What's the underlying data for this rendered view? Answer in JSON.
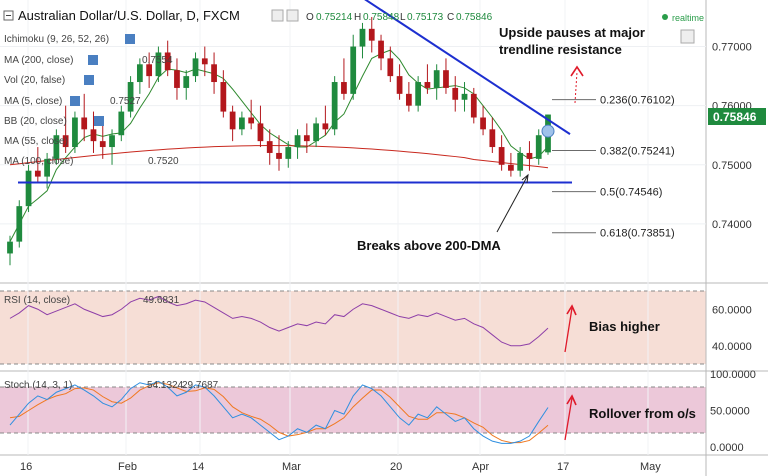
{
  "header": {
    "symbol": "Australian Dollar/U.S. Dollar, D, FXCM",
    "o_label": "O",
    "o": "0.75214",
    "h_label": "H",
    "h": "0.75848",
    "l_label": "L",
    "l": "0.75173",
    "c_label": "C",
    "c": "0.75846",
    "realtime_label": "realtime"
  },
  "indicators": {
    "ichimoku": "Ichimoku (9, 26, 52, 26)",
    "ma200": "MA (200, close)",
    "ma200_value": "0.7554",
    "vol": "Vol (20, false)",
    "ma5": "MA (5, close)",
    "ma5_value": "0.7527",
    "bb": "BB (20, close)",
    "ma55": "MA (55, close)",
    "ma100": "MA (100, close)",
    "ma100_value": "0.7520"
  },
  "annotations": {
    "resistance_1": "Upside pauses at major",
    "resistance_2": "trendline resistance",
    "breakout": "Breaks above 200-DMA",
    "bias": "Bias higher",
    "rollover": "Rollover from o/s"
  },
  "fib_levels": [
    {
      "label": "0.236(0.76102)",
      "value": 0.76102
    },
    {
      "label": "0.382(0.75241)",
      "value": 0.75241
    },
    {
      "label": "0.5(0.74546)",
      "value": 0.74546
    },
    {
      "label": "0.618(0.73851)",
      "value": 0.73851
    }
  ],
  "price_axis": {
    "ticks": [
      {
        "label": "0.77000",
        "value": 0.77
      },
      {
        "label": "0.76000",
        "value": 0.76
      },
      {
        "label": "0.75000",
        "value": 0.75
      },
      {
        "label": "0.74000",
        "value": 0.74
      }
    ],
    "last_price": "0.75846",
    "last_price_color": "#1f8a3e"
  },
  "rsi": {
    "label": "RSI (14, close)",
    "value": "49.6831",
    "ticks": [
      {
        "label": "60.0000",
        "value": 60
      },
      {
        "label": "40.0000",
        "value": 40
      }
    ],
    "color": "#8e3fa8"
  },
  "stoch": {
    "label": "Stoch (14, 3, 1)",
    "k_value": "54.1324",
    "d_value": "29.7687",
    "ticks": [
      {
        "label": "100.0000",
        "value": 100
      },
      {
        "label": "50.0000",
        "value": 50
      },
      {
        "label": "0.0000",
        "value": 0
      }
    ],
    "k_color": "#2f8fe0",
    "d_color": "#f07820"
  },
  "time_axis": [
    "16",
    "Feb",
    "14",
    "Mar",
    "20",
    "Apr",
    "17",
    "May"
  ],
  "colors": {
    "bull": "#1f8a3e",
    "bear": "#b3171c",
    "trendline": "#1d2fd0",
    "ma200": "#c8281e",
    "ma5": "#2f8a2f",
    "annotation_arrow": "#e01a2a",
    "bias_arrow": "#e01a2a"
  },
  "chart_data": {
    "type": "candlestick",
    "title": "Australian Dollar/U.S. Dollar, D, FXCM",
    "ylim": [
      0.7322,
      0.7772
    ],
    "candles": [
      {
        "o": 0.735,
        "h": 0.738,
        "l": 0.733,
        "c": 0.737
      },
      {
        "o": 0.737,
        "h": 0.744,
        "l": 0.736,
        "c": 0.743
      },
      {
        "o": 0.743,
        "h": 0.75,
        "l": 0.742,
        "c": 0.749
      },
      {
        "o": 0.749,
        "h": 0.753,
        "l": 0.747,
        "c": 0.748
      },
      {
        "o": 0.748,
        "h": 0.752,
        "l": 0.746,
        "c": 0.751
      },
      {
        "o": 0.751,
        "h": 0.756,
        "l": 0.75,
        "c": 0.755
      },
      {
        "o": 0.755,
        "h": 0.76,
        "l": 0.752,
        "c": 0.753
      },
      {
        "o": 0.753,
        "h": 0.759,
        "l": 0.752,
        "c": 0.758
      },
      {
        "o": 0.758,
        "h": 0.762,
        "l": 0.754,
        "c": 0.756
      },
      {
        "o": 0.756,
        "h": 0.759,
        "l": 0.752,
        "c": 0.754
      },
      {
        "o": 0.754,
        "h": 0.757,
        "l": 0.751,
        "c": 0.753
      },
      {
        "o": 0.753,
        "h": 0.756,
        "l": 0.75,
        "c": 0.755
      },
      {
        "o": 0.755,
        "h": 0.76,
        "l": 0.754,
        "c": 0.759
      },
      {
        "o": 0.759,
        "h": 0.765,
        "l": 0.758,
        "c": 0.764
      },
      {
        "o": 0.764,
        "h": 0.768,
        "l": 0.762,
        "c": 0.767
      },
      {
        "o": 0.767,
        "h": 0.769,
        "l": 0.763,
        "c": 0.765
      },
      {
        "o": 0.765,
        "h": 0.77,
        "l": 0.764,
        "c": 0.769
      },
      {
        "o": 0.769,
        "h": 0.771,
        "l": 0.765,
        "c": 0.766
      },
      {
        "o": 0.766,
        "h": 0.768,
        "l": 0.761,
        "c": 0.763
      },
      {
        "o": 0.763,
        "h": 0.766,
        "l": 0.761,
        "c": 0.765
      },
      {
        "o": 0.765,
        "h": 0.769,
        "l": 0.764,
        "c": 0.768
      },
      {
        "o": 0.768,
        "h": 0.77,
        "l": 0.765,
        "c": 0.767
      },
      {
        "o": 0.767,
        "h": 0.769,
        "l": 0.762,
        "c": 0.764
      },
      {
        "o": 0.764,
        "h": 0.766,
        "l": 0.758,
        "c": 0.759
      },
      {
        "o": 0.759,
        "h": 0.76,
        "l": 0.754,
        "c": 0.756
      },
      {
        "o": 0.756,
        "h": 0.759,
        "l": 0.755,
        "c": 0.758
      },
      {
        "o": 0.758,
        "h": 0.761,
        "l": 0.756,
        "c": 0.757
      },
      {
        "o": 0.757,
        "h": 0.76,
        "l": 0.753,
        "c": 0.754
      },
      {
        "o": 0.754,
        "h": 0.756,
        "l": 0.75,
        "c": 0.752
      },
      {
        "o": 0.752,
        "h": 0.755,
        "l": 0.749,
        "c": 0.751
      },
      {
        "o": 0.751,
        "h": 0.754,
        "l": 0.7495,
        "c": 0.753
      },
      {
        "o": 0.753,
        "h": 0.756,
        "l": 0.751,
        "c": 0.755
      },
      {
        "o": 0.755,
        "h": 0.757,
        "l": 0.752,
        "c": 0.754
      },
      {
        "o": 0.754,
        "h": 0.758,
        "l": 0.753,
        "c": 0.757
      },
      {
        "o": 0.757,
        "h": 0.76,
        "l": 0.755,
        "c": 0.756
      },
      {
        "o": 0.756,
        "h": 0.765,
        "l": 0.755,
        "c": 0.764
      },
      {
        "o": 0.764,
        "h": 0.768,
        "l": 0.761,
        "c": 0.762
      },
      {
        "o": 0.762,
        "h": 0.772,
        "l": 0.761,
        "c": 0.77
      },
      {
        "o": 0.77,
        "h": 0.774,
        "l": 0.768,
        "c": 0.773
      },
      {
        "o": 0.773,
        "h": 0.775,
        "l": 0.769,
        "c": 0.771
      },
      {
        "o": 0.771,
        "h": 0.772,
        "l": 0.766,
        "c": 0.768
      },
      {
        "o": 0.768,
        "h": 0.77,
        "l": 0.764,
        "c": 0.765
      },
      {
        "o": 0.765,
        "h": 0.767,
        "l": 0.761,
        "c": 0.762
      },
      {
        "o": 0.762,
        "h": 0.764,
        "l": 0.759,
        "c": 0.76
      },
      {
        "o": 0.76,
        "h": 0.765,
        "l": 0.759,
        "c": 0.764
      },
      {
        "o": 0.764,
        "h": 0.767,
        "l": 0.762,
        "c": 0.763
      },
      {
        "o": 0.763,
        "h": 0.767,
        "l": 0.761,
        "c": 0.766
      },
      {
        "o": 0.766,
        "h": 0.768,
        "l": 0.762,
        "c": 0.763
      },
      {
        "o": 0.763,
        "h": 0.765,
        "l": 0.759,
        "c": 0.761
      },
      {
        "o": 0.761,
        "h": 0.764,
        "l": 0.759,
        "c": 0.762
      },
      {
        "o": 0.762,
        "h": 0.763,
        "l": 0.757,
        "c": 0.758
      },
      {
        "o": 0.758,
        "h": 0.76,
        "l": 0.755,
        "c": 0.756
      },
      {
        "o": 0.756,
        "h": 0.758,
        "l": 0.752,
        "c": 0.753
      },
      {
        "o": 0.753,
        "h": 0.755,
        "l": 0.749,
        "c": 0.75
      },
      {
        "o": 0.75,
        "h": 0.752,
        "l": 0.748,
        "c": 0.749
      },
      {
        "o": 0.749,
        "h": 0.753,
        "l": 0.748,
        "c": 0.752
      },
      {
        "o": 0.752,
        "h": 0.754,
        "l": 0.749,
        "c": 0.751
      },
      {
        "o": 0.751,
        "h": 0.756,
        "l": 0.75,
        "c": 0.755
      },
      {
        "o": 0.7521,
        "h": 0.7585,
        "l": 0.7517,
        "c": 0.7585
      }
    ],
    "rsi_values": [
      55,
      58,
      62,
      60,
      57,
      59,
      61,
      63,
      60,
      58,
      56,
      57,
      60,
      64,
      66,
      65,
      67,
      64,
      62,
      63,
      65,
      64,
      61,
      58,
      55,
      56,
      55,
      53,
      50,
      48,
      50,
      52,
      51,
      53,
      52,
      57,
      56,
      60,
      63,
      62,
      60,
      58,
      56,
      55,
      57,
      56,
      58,
      56,
      54,
      55,
      52,
      50,
      46,
      42,
      40,
      40,
      41,
      45,
      49.68
    ],
    "stoch_k": [
      30,
      45,
      60,
      70,
      65,
      75,
      80,
      85,
      78,
      70,
      60,
      55,
      65,
      80,
      88,
      85,
      90,
      82,
      70,
      75,
      85,
      82,
      70,
      55,
      40,
      45,
      40,
      30,
      20,
      10,
      15,
      25,
      20,
      30,
      25,
      50,
      45,
      70,
      85,
      80,
      70,
      55,
      40,
      30,
      45,
      40,
      55,
      45,
      35,
      40,
      25,
      15,
      8,
      5,
      5,
      8,
      15,
      35,
      54.13
    ],
    "stoch_d": [
      40,
      42,
      50,
      58,
      65,
      70,
      73,
      80,
      81,
      78,
      69,
      62,
      60,
      67,
      78,
      84,
      88,
      86,
      81,
      76,
      77,
      81,
      79,
      69,
      55,
      47,
      42,
      38,
      30,
      20,
      15,
      17,
      20,
      25,
      25,
      32,
      40,
      55,
      67,
      78,
      78,
      68,
      55,
      42,
      38,
      38,
      47,
      47,
      45,
      40,
      33,
      27,
      16,
      9,
      6,
      6,
      9,
      19,
      29.77
    ],
    "trendline_resistance": [
      {
        "x_index": 36,
        "y": 0.7782
      },
      {
        "x_index": 58,
        "y": 0.7562
      }
    ],
    "horizontal_support": 0.747
  }
}
